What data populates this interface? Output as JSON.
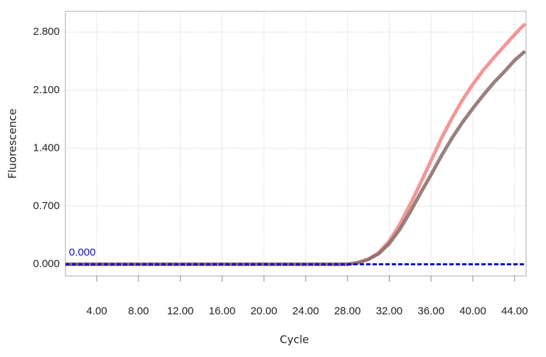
{
  "chart_data": {
    "type": "line",
    "x_label": "Cycle",
    "y_label": "Fluorescence",
    "x": [
      1,
      2,
      3,
      4,
      5,
      6,
      7,
      8,
      9,
      10,
      11,
      12,
      13,
      14,
      15,
      16,
      17,
      18,
      19,
      20,
      21,
      22,
      23,
      24,
      25,
      26,
      27,
      28,
      29,
      30,
      31,
      32,
      33,
      34,
      35,
      36,
      37,
      38,
      39,
      40,
      41,
      42,
      43,
      44,
      45
    ],
    "series": [
      {
        "color": "#f08585",
        "values": [
          0,
          0,
          0,
          0,
          0,
          0,
          0,
          0,
          0,
          0,
          0,
          0,
          0,
          0,
          0,
          0,
          0,
          0,
          0,
          0,
          0,
          0,
          0,
          0,
          0,
          0,
          0,
          0,
          0.02,
          0.06,
          0.14,
          0.28,
          0.48,
          0.72,
          0.98,
          1.25,
          1.52,
          1.76,
          1.98,
          2.17,
          2.34,
          2.49,
          2.63,
          2.77,
          2.9
        ]
      },
      {
        "color": "#8a6a66",
        "values": [
          0,
          0,
          0,
          0,
          0,
          0,
          0,
          0,
          0,
          0,
          0,
          0,
          0,
          0,
          0,
          0,
          0,
          0,
          0,
          0,
          0,
          0,
          0,
          0,
          0,
          0,
          0,
          0,
          0.02,
          0.06,
          0.13,
          0.25,
          0.42,
          0.63,
          0.86,
          1.08,
          1.31,
          1.52,
          1.71,
          1.88,
          2.04,
          2.19,
          2.32,
          2.46,
          2.57
        ]
      }
    ],
    "threshold": {
      "value": 0,
      "label": "0.000",
      "color": "#1010c0"
    },
    "xlim": [
      1,
      45.1
    ],
    "ylim": [
      -0.14,
      3.05
    ],
    "xticks": [
      {
        "value": 4,
        "label": "4.00"
      },
      {
        "value": 8,
        "label": "8.00"
      },
      {
        "value": 12,
        "label": "12.00"
      },
      {
        "value": 16,
        "label": "16.00"
      },
      {
        "value": 20,
        "label": "20.00"
      },
      {
        "value": 24,
        "label": "24.00"
      },
      {
        "value": 28,
        "label": "28.00"
      },
      {
        "value": 32,
        "label": "32.00"
      },
      {
        "value": 36,
        "label": "36.00"
      },
      {
        "value": 40,
        "label": "40.00"
      },
      {
        "value": 44,
        "label": "44.00"
      }
    ],
    "yticks": [
      {
        "value": 0,
        "label": "0.000"
      },
      {
        "value": 0.7,
        "label": "0.700"
      },
      {
        "value": 1.4,
        "label": "1.400"
      },
      {
        "value": 2.1,
        "label": "2.100"
      },
      {
        "value": 2.8,
        "label": "2.800"
      }
    ],
    "grid": true
  }
}
